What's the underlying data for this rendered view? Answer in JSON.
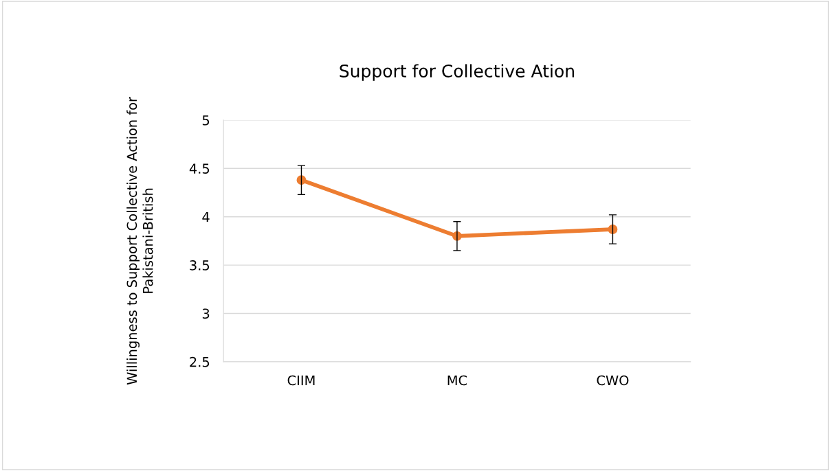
{
  "chart_data": {
    "type": "line",
    "title": "Support for Collective Ation",
    "ylabel": "Willingness to Support Collective Action for\nPakistani-British",
    "categories": [
      "CIIM",
      "MC",
      "CWO"
    ],
    "series": [
      {
        "color": "#ed7d31",
        "values": [
          4.38,
          3.8,
          3.87
        ],
        "errors": [
          0.15,
          0.15,
          0.15
        ]
      }
    ],
    "ylim": [
      2.5,
      5
    ],
    "yticks": [
      2.5,
      3,
      3.5,
      4,
      4.5,
      5
    ],
    "grid": "y",
    "marker": "circle",
    "line_style": "solid"
  }
}
